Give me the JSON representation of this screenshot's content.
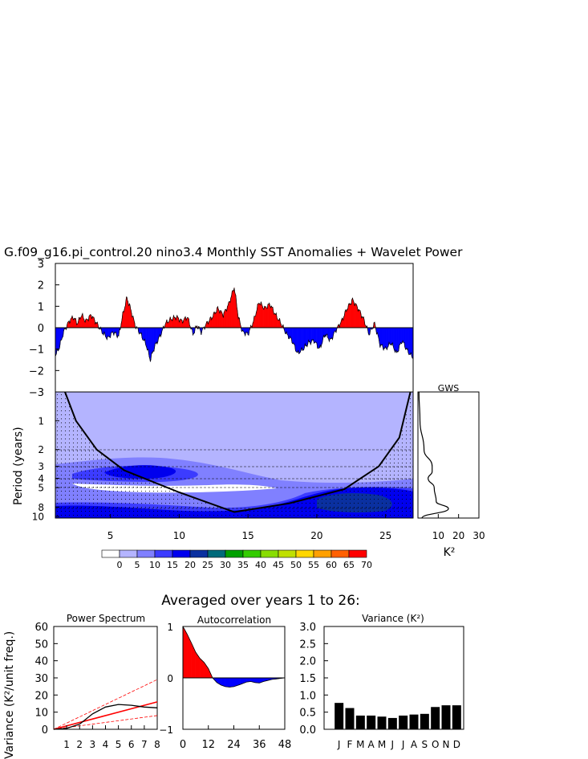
{
  "title": "G.f09_g16.pi_control.20 nino3.4 Monthly SST Anomalies + Wavelet Power",
  "colors": {
    "positive": "#ff0000",
    "negative": "#0000ff",
    "black": "#000000"
  },
  "chart_data": [
    {
      "id": "timeseries",
      "type": "area",
      "ylim": [
        -3,
        3
      ],
      "yticks": [
        "3",
        "2",
        "1",
        "0",
        "−1",
        "−2",
        "−3"
      ],
      "xlim": [
        1,
        27
      ],
      "anchors": [
        [
          1.0,
          -1.3
        ],
        [
          1.3,
          -0.9
        ],
        [
          1.6,
          -0.2
        ],
        [
          2.0,
          0.3
        ],
        [
          2.3,
          0.5
        ],
        [
          2.6,
          0.2
        ],
        [
          2.9,
          0.6
        ],
        [
          3.2,
          0.3
        ],
        [
          3.6,
          0.6
        ],
        [
          4.0,
          0.2
        ],
        [
          4.4,
          -0.2
        ],
        [
          4.8,
          -0.5
        ],
        [
          5.2,
          -0.2
        ],
        [
          5.6,
          -0.4
        ],
        [
          5.9,
          0.6
        ],
        [
          6.2,
          1.4
        ],
        [
          6.5,
          0.8
        ],
        [
          6.8,
          0.1
        ],
        [
          7.2,
          -0.3
        ],
        [
          7.6,
          -0.8
        ],
        [
          7.9,
          -1.5
        ],
        [
          8.2,
          -0.9
        ],
        [
          8.6,
          -0.4
        ],
        [
          9.0,
          0.2
        ],
        [
          9.4,
          0.4
        ],
        [
          9.8,
          0.5
        ],
        [
          10.2,
          0.3
        ],
        [
          10.6,
          0.5
        ],
        [
          11.0,
          -0.3
        ],
        [
          11.3,
          0.1
        ],
        [
          11.6,
          -0.2
        ],
        [
          12.0,
          0.2
        ],
        [
          12.4,
          0.5
        ],
        [
          12.8,
          0.9
        ],
        [
          13.2,
          0.6
        ],
        [
          13.6,
          1.1
        ],
        [
          14.0,
          1.9
        ],
        [
          14.3,
          0.5
        ],
        [
          14.6,
          -0.2
        ],
        [
          15.0,
          -0.3
        ],
        [
          15.4,
          0.3
        ],
        [
          15.8,
          1.2
        ],
        [
          16.2,
          0.9
        ],
        [
          16.6,
          1.1
        ],
        [
          17.0,
          0.6
        ],
        [
          17.4,
          0.2
        ],
        [
          17.8,
          -0.3
        ],
        [
          18.2,
          -0.6
        ],
        [
          18.6,
          -1.2
        ],
        [
          19.0,
          -1.0
        ],
        [
          19.4,
          -0.7
        ],
        [
          19.8,
          -0.6
        ],
        [
          20.2,
          -1.0
        ],
        [
          20.6,
          -0.3
        ],
        [
          21.0,
          -0.6
        ],
        [
          21.4,
          -0.1
        ],
        [
          21.8,
          0.3
        ],
        [
          22.2,
          0.9
        ],
        [
          22.6,
          1.3
        ],
        [
          23.0,
          0.9
        ],
        [
          23.4,
          0.4
        ],
        [
          23.8,
          -0.3
        ],
        [
          24.2,
          0.2
        ],
        [
          24.6,
          -0.8
        ],
        [
          25.0,
          -1.0
        ],
        [
          25.4,
          -0.7
        ],
        [
          25.8,
          -1.2
        ],
        [
          26.2,
          -0.6
        ],
        [
          26.6,
          -1.1
        ],
        [
          27.0,
          -1.4
        ]
      ]
    },
    {
      "id": "wavelet",
      "type": "heatmap",
      "ylabel": "Period (years)",
      "yticks": [
        "1",
        "2",
        "3",
        "4",
        "5",
        "8",
        "10"
      ],
      "xticks": [
        "5",
        "10",
        "15",
        "20",
        "25"
      ],
      "xlim": [
        1,
        27
      ],
      "period_range": [
        0.5,
        10.4
      ],
      "cone": [
        [
          1.7,
          0.5
        ],
        [
          2.5,
          1.0
        ],
        [
          4.0,
          2.0
        ],
        [
          6.0,
          3.3
        ],
        [
          10.0,
          5.6
        ],
        [
          14.0,
          9.0
        ],
        [
          18.0,
          7.3
        ],
        [
          22.0,
          5.2
        ],
        [
          24.5,
          3.0
        ],
        [
          26.0,
          1.5
        ],
        [
          26.8,
          0.5
        ]
      ],
      "colorbar_labels": [
        "0",
        "5",
        "10",
        "15",
        "20",
        "25",
        "30",
        "35",
        "40",
        "45",
        "50",
        "55",
        "60",
        "65",
        "70"
      ],
      "colorbar_colors": [
        "#ffffff",
        "#b4b4ff",
        "#8080ff",
        "#3c3cff",
        "#0000ee",
        "#0a30a0",
        "#006a7a",
        "#00a000",
        "#33cc00",
        "#88dd00",
        "#c0e000",
        "#ffd700",
        "#ffa000",
        "#ff6000",
        "#ff0000"
      ]
    },
    {
      "id": "gws",
      "type": "line",
      "title": "GWS",
      "xlabel": "K²",
      "xticks": [
        "10",
        "20",
        "30"
      ],
      "xlim": [
        0,
        30
      ],
      "points": [
        [
          0.5,
          0.5
        ],
        [
          1,
          1.0
        ],
        [
          3,
          2.0
        ],
        [
          7,
          3.0
        ],
        [
          7,
          3.4
        ],
        [
          5,
          4.0
        ],
        [
          8,
          5.0
        ],
        [
          9,
          7.0
        ],
        [
          15,
          8.3
        ],
        [
          2,
          10.4
        ]
      ]
    },
    {
      "id": "spectrum",
      "type": "line",
      "title": "Power Spectrum",
      "ylabel": "Variance (K²/unit freq.)",
      "xticks": [
        "1",
        "2",
        "3",
        "4",
        "5",
        "6",
        "7",
        "8"
      ],
      "yticks": [
        "0",
        "10",
        "20",
        "30",
        "40",
        "50",
        "60"
      ],
      "xlim": [
        0,
        8
      ],
      "ylim": [
        0,
        60
      ],
      "spectrum": [
        [
          0,
          0
        ],
        [
          1,
          0.5
        ],
        [
          2,
          3
        ],
        [
          3,
          9
        ],
        [
          4,
          13
        ],
        [
          5,
          14.5
        ],
        [
          6,
          14
        ],
        [
          7,
          13
        ],
        [
          8,
          12.5
        ]
      ],
      "red_noise": [
        [
          0,
          0
        ],
        [
          8,
          16
        ]
      ],
      "conf_upper": [
        [
          0,
          0
        ],
        [
          8,
          29
        ]
      ],
      "conf_lower": [
        [
          0,
          0
        ],
        [
          8,
          8
        ]
      ]
    },
    {
      "id": "autocorrelation",
      "type": "area",
      "title": "Autocorrelation",
      "xticks": [
        "0",
        "12",
        "24",
        "36",
        "48"
      ],
      "yticks": [
        "1",
        "0",
        "−1"
      ],
      "xlim": [
        0,
        48
      ],
      "ylim": [
        -1,
        1
      ],
      "points": [
        [
          0,
          1
        ],
        [
          2,
          0.85
        ],
        [
          4,
          0.68
        ],
        [
          6,
          0.5
        ],
        [
          8,
          0.38
        ],
        [
          10,
          0.3
        ],
        [
          12,
          0.18
        ],
        [
          14,
          0.0
        ],
        [
          16,
          -0.09
        ],
        [
          18,
          -0.14
        ],
        [
          20,
          -0.17
        ],
        [
          22,
          -0.18
        ],
        [
          24,
          -0.17
        ],
        [
          27,
          -0.13
        ],
        [
          30,
          -0.08
        ],
        [
          32,
          -0.07
        ],
        [
          34,
          -0.09
        ],
        [
          36,
          -0.1
        ],
        [
          38,
          -0.07
        ],
        [
          40,
          -0.05
        ],
        [
          42,
          -0.03
        ],
        [
          44,
          -0.02
        ],
        [
          46,
          -0.01
        ],
        [
          48,
          0
        ]
      ]
    },
    {
      "id": "variance",
      "type": "bar",
      "title": "Variance (K²)",
      "categories": [
        "J",
        "F",
        "M",
        "A",
        "M",
        "J",
        "J",
        "A",
        "S",
        "O",
        "N",
        "D"
      ],
      "values": [
        0.77,
        0.62,
        0.4,
        0.4,
        0.37,
        0.33,
        0.4,
        0.43,
        0.45,
        0.65,
        0.7,
        0.7
      ],
      "yticks": [
        "0.0",
        "0.5",
        "1.0",
        "1.5",
        "2.0",
        "2.5",
        "3.0"
      ],
      "ylim": [
        0,
        3.0
      ]
    }
  ],
  "averaged_title": "Averaged over years 1 to 26:"
}
